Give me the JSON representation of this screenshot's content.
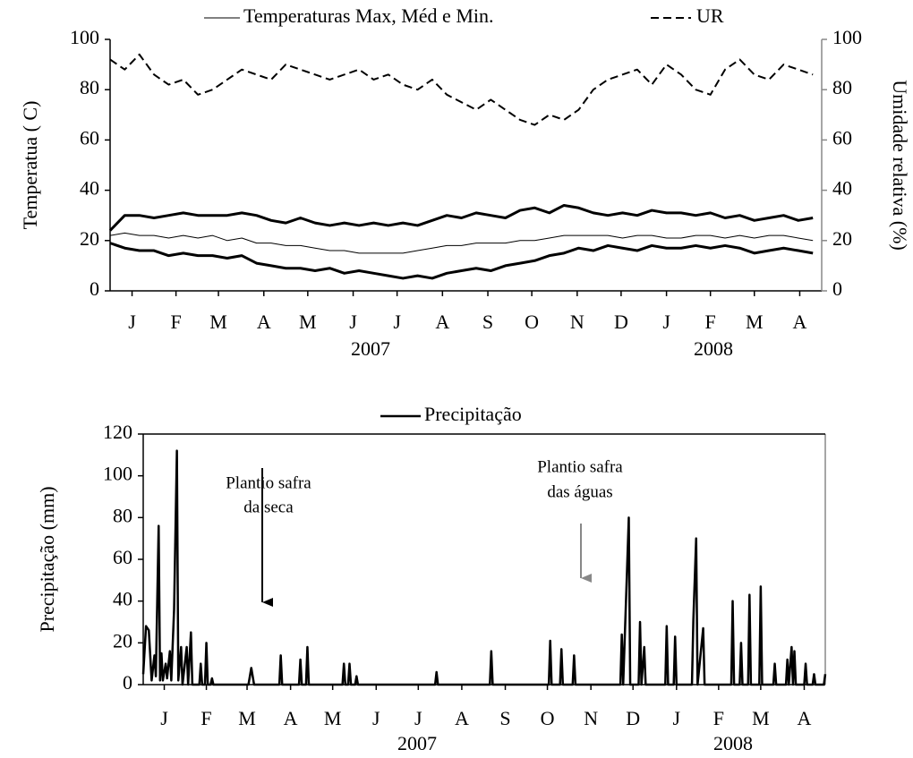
{
  "chart_data": [
    {
      "type": "line",
      "legend": [
        {
          "label": "Temperaturas Max, Méd e Min.",
          "dash": false
        },
        {
          "label": "UR",
          "dash": true
        }
      ],
      "ylabel": "Temperatua ( C)",
      "y2label": "Umidade relativa (%)",
      "x": [
        0,
        10,
        20,
        30,
        40,
        50,
        60,
        70,
        80,
        90,
        100,
        110,
        120,
        130,
        140,
        150,
        160,
        170,
        180,
        190,
        200,
        210,
        220,
        230,
        240,
        250,
        260,
        270,
        280,
        290,
        300,
        310,
        320,
        330,
        340,
        350,
        360,
        370,
        380,
        390,
        400,
        410,
        420,
        430,
        440,
        450,
        460,
        470,
        480
      ],
      "xlim": [
        0,
        486
      ],
      "xticks": [
        {
          "value": 15,
          "label": "J"
        },
        {
          "value": 45,
          "label": "F"
        },
        {
          "value": 74,
          "label": "M"
        },
        {
          "value": 105,
          "label": "A"
        },
        {
          "value": 135,
          "label": "M"
        },
        {
          "value": 166,
          "label": "J"
        },
        {
          "value": 196,
          "label": "J"
        },
        {
          "value": 227,
          "label": "A"
        },
        {
          "value": 258,
          "label": "S"
        },
        {
          "value": 288,
          "label": "O"
        },
        {
          "value": 319,
          "label": "N"
        },
        {
          "value": 349,
          "label": "D"
        },
        {
          "value": 380,
          "label": "J"
        },
        {
          "value": 410,
          "label": "F"
        },
        {
          "value": 440,
          "label": "M"
        },
        {
          "value": 471,
          "label": "A"
        }
      ],
      "year_labels": [
        "2007",
        "2008"
      ],
      "ylim": [
        0,
        100
      ],
      "yticks": [
        0,
        20,
        40,
        60,
        80,
        100
      ],
      "y2lim": [
        0,
        100
      ],
      "y2ticks": [
        0,
        20,
        40,
        60,
        80,
        100
      ],
      "series": [
        {
          "color": "#000000",
          "width": 3,
          "dash": false,
          "values": [
            24,
            30,
            30,
            29,
            30,
            31,
            30,
            30,
            30,
            31,
            30,
            28,
            27,
            29,
            27,
            26,
            27,
            26,
            27,
            26,
            27,
            26,
            28,
            30,
            29,
            31,
            30,
            29,
            32,
            33,
            31,
            34,
            33,
            31,
            30,
            31,
            30,
            32,
            31,
            31,
            30,
            31,
            29,
            30,
            28,
            29,
            30,
            28,
            29
          ]
        },
        {
          "color": "#000000",
          "width": 1,
          "dash": false,
          "values": [
            22,
            23,
            22,
            22,
            21,
            22,
            21,
            22,
            20,
            21,
            19,
            19,
            18,
            18,
            17,
            16,
            16,
            15,
            15,
            15,
            15,
            16,
            17,
            18,
            18,
            19,
            19,
            19,
            20,
            20,
            21,
            22,
            22,
            22,
            22,
            21,
            22,
            22,
            21,
            21,
            22,
            22,
            21,
            22,
            21,
            22,
            22,
            21,
            20
          ]
        },
        {
          "color": "#000000",
          "width": 3,
          "dash": false,
          "values": [
            19,
            17,
            16,
            16,
            14,
            15,
            14,
            14,
            13,
            14,
            11,
            10,
            9,
            9,
            8,
            9,
            7,
            8,
            7,
            6,
            5,
            6,
            5,
            7,
            8,
            9,
            8,
            10,
            11,
            12,
            14,
            15,
            17,
            16,
            18,
            17,
            16,
            18,
            17,
            17,
            18,
            17,
            18,
            17,
            15,
            16,
            17,
            16,
            15
          ]
        },
        {
          "color": "#000000",
          "width": 2,
          "dash": true,
          "axis": "y2",
          "values": [
            92,
            88,
            94,
            86,
            82,
            84,
            78,
            80,
            84,
            88,
            86,
            84,
            90,
            88,
            86,
            84,
            86,
            88,
            84,
            86,
            82,
            80,
            84,
            78,
            75,
            72,
            76,
            72,
            68,
            66,
            70,
            68,
            72,
            80,
            84,
            86,
            88,
            82,
            90,
            86,
            80,
            78,
            88,
            92,
            86,
            84,
            90,
            88,
            86
          ]
        }
      ]
    },
    {
      "type": "line",
      "legend": [
        {
          "label": "Precipitação",
          "dash": false
        }
      ],
      "ylabel": "Precipitação (mm)",
      "annotations": [
        {
          "lines": [
            "Plantio safra",
            "da seca"
          ],
          "color": "#000000"
        },
        {
          "lines": [
            "Plantio safra",
            "das águas"
          ],
          "color": "#888888"
        }
      ],
      "x": [
        0,
        2,
        4,
        6,
        8,
        9,
        11,
        12,
        13,
        14,
        16,
        17,
        19,
        20,
        22,
        24,
        25,
        27,
        28,
        31,
        32,
        34,
        35,
        40,
        41,
        42,
        44,
        45,
        46,
        48,
        49,
        50,
        75,
        77,
        79,
        97,
        98,
        99,
        111,
        112,
        113,
        116,
        117,
        118,
        142,
        143,
        144,
        146,
        147,
        148,
        151,
        152,
        153,
        208,
        209,
        210,
        247,
        248,
        249,
        289,
        290,
        291,
        297,
        298,
        299,
        306,
        307,
        308,
        340,
        341,
        342,
        346,
        347,
        353,
        354,
        355,
        357,
        358,
        372,
        373,
        374,
        378,
        379,
        380,
        391,
        392,
        394,
        395,
        399,
        400,
        419,
        420,
        421,
        425,
        426,
        427,
        431,
        432,
        433,
        439,
        440,
        441,
        449,
        450,
        451,
        458,
        459,
        460,
        462,
        463,
        464,
        465,
        471,
        472,
        473,
        477,
        478,
        479,
        485,
        486
      ],
      "xlim": [
        0,
        486
      ],
      "xticks": [
        {
          "value": 15,
          "label": "J"
        },
        {
          "value": 45,
          "label": "F"
        },
        {
          "value": 74,
          "label": "M"
        },
        {
          "value": 105,
          "label": "A"
        },
        {
          "value": 135,
          "label": "M"
        },
        {
          "value": 166,
          "label": "J"
        },
        {
          "value": 196,
          "label": "J"
        },
        {
          "value": 227,
          "label": "A"
        },
        {
          "value": 258,
          "label": "S"
        },
        {
          "value": 288,
          "label": "O"
        },
        {
          "value": 319,
          "label": "N"
        },
        {
          "value": 349,
          "label": "D"
        },
        {
          "value": 380,
          "label": "J"
        },
        {
          "value": 410,
          "label": "F"
        },
        {
          "value": 440,
          "label": "M"
        },
        {
          "value": 471,
          "label": "A"
        }
      ],
      "year_labels": [
        "2007",
        "2008"
      ],
      "ylim": [
        0,
        120
      ],
      "yticks": [
        0,
        20,
        40,
        60,
        80,
        100,
        120
      ],
      "series": [
        {
          "color": "#000000",
          "width": 2.5,
          "dash": false,
          "values": [
            5,
            28,
            26,
            2,
            14,
            4,
            76,
            2,
            15,
            2,
            10,
            3,
            16,
            2,
            36,
            112,
            2,
            18,
            0,
            18,
            0,
            25,
            0,
            0,
            10,
            0,
            0,
            20,
            0,
            0,
            3,
            0,
            0,
            8,
            0,
            0,
            14,
            0,
            0,
            12,
            0,
            0,
            18,
            0,
            0,
            10,
            0,
            0,
            10,
            0,
            0,
            4,
            0,
            0,
            6,
            0,
            0,
            16,
            0,
            0,
            21,
            0,
            0,
            17,
            0,
            0,
            14,
            0,
            0,
            24,
            0,
            80,
            0,
            0,
            30,
            0,
            18,
            0,
            0,
            28,
            0,
            0,
            23,
            0,
            0,
            31,
            70,
            0,
            27,
            0,
            0,
            40,
            0,
            0,
            20,
            0,
            0,
            43,
            0,
            0,
            47,
            0,
            0,
            10,
            0,
            0,
            12,
            0,
            18,
            0,
            16,
            0,
            0,
            10,
            0,
            0,
            5,
            0,
            0,
            5
          ]
        }
      ]
    }
  ]
}
